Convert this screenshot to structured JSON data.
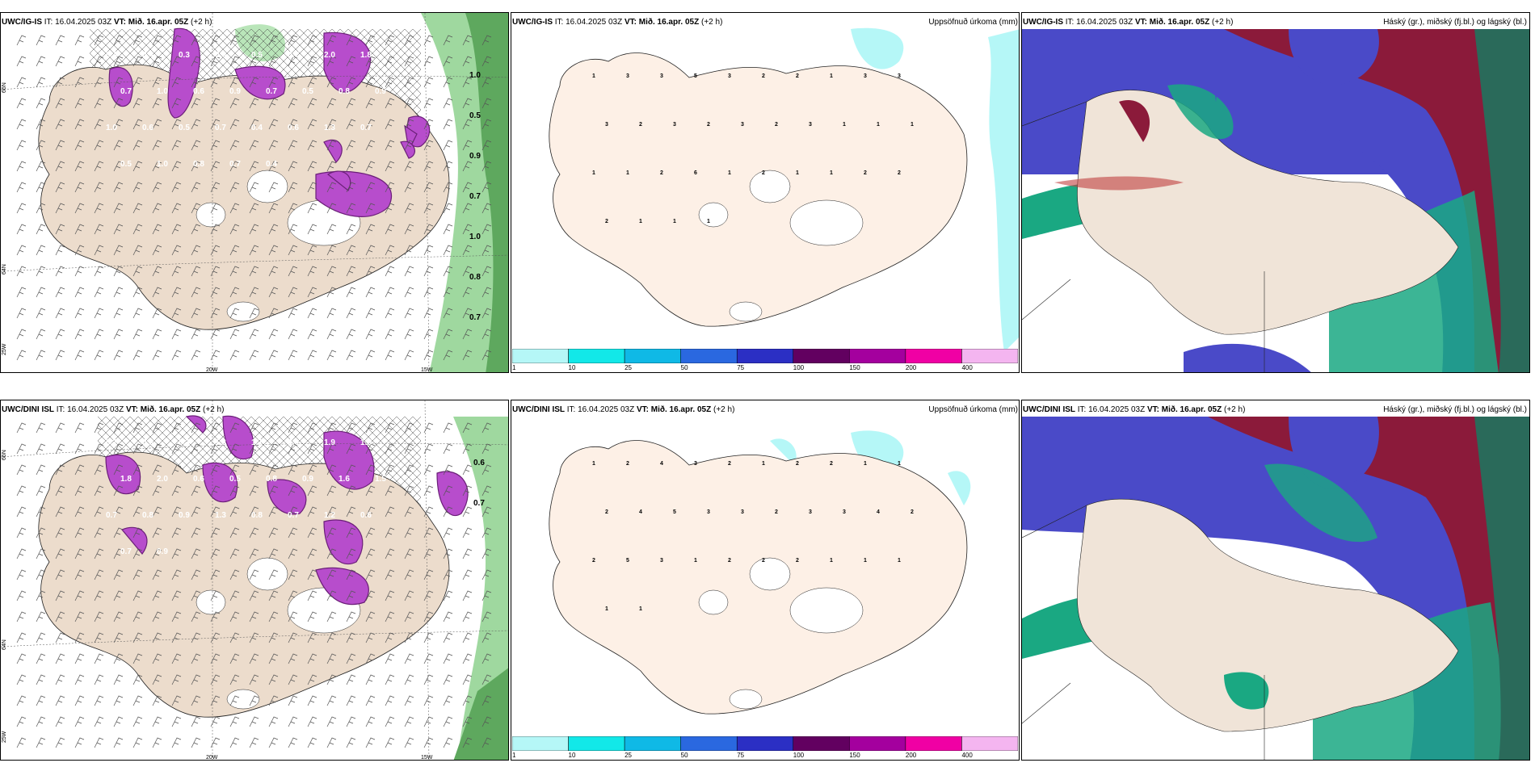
{
  "rows": [
    {
      "model": "UWC/IG-IS",
      "it_label": "IT:",
      "it_value": "16.04.2025 03Z",
      "vt_label": "VT:",
      "vt_value": "Mið. 16.apr. 05Z",
      "lead": "(+2 h)",
      "panel1_values": [
        "0.4",
        "0.4",
        "0.3",
        "0.6",
        "0.5",
        "0.7",
        "2.0",
        "1.8",
        "0.7",
        "1.0",
        "0.6",
        "0.9",
        "0.7",
        "0.5",
        "0.8",
        "0.9",
        "1.0",
        "0.6",
        "0.5",
        "0.7",
        "0.4",
        "0.6",
        "1.3",
        "0.7",
        "0.5",
        "1.0",
        "0.8",
        "0.7",
        "0.4"
      ],
      "panel1_edge_values": [
        "1.0",
        "0.5",
        "0.9",
        "0.7",
        "1.0",
        "0.8",
        "0.7"
      ],
      "panel2_values": [
        "1",
        "3",
        "3",
        "5",
        "3",
        "2",
        "2",
        "1",
        "3",
        "3",
        "3",
        "2",
        "3",
        "2",
        "3",
        "2",
        "3",
        "1",
        "1",
        "1",
        "1",
        "1",
        "2",
        "6",
        "1",
        "2",
        "1",
        "1",
        "2",
        "2",
        "2",
        "1",
        "1",
        "1"
      ],
      "panel3_title": "Háský (gr.), miðský (fj.bl.) og lágský (bl.)"
    },
    {
      "model": "UWC/DINI ISL",
      "it_label": "IT:",
      "it_value": "16.04.2025 03Z",
      "vt_label": "VT:",
      "vt_value": "Mið. 16.apr. 05Z",
      "lead": "(+2 h)",
      "panel1_values": [
        "0.2",
        "0.3",
        "0.3",
        "1.3",
        "1.7",
        "2.0",
        "1.9",
        "1.5",
        "1.8",
        "2.0",
        "0.6",
        "0.5",
        "0.8",
        "0.9",
        "1.6",
        "1.5",
        "0.7",
        "0.8",
        "0.9",
        "1.3",
        "0.8",
        "0.7",
        "1.2",
        "0.6",
        "0.7",
        "0.9"
      ],
      "panel1_edge_values": [
        "0.6",
        "0.7"
      ],
      "panel2_values": [
        "1",
        "2",
        "4",
        "3",
        "2",
        "1",
        "2",
        "2",
        "1",
        "1",
        "2",
        "4",
        "5",
        "3",
        "3",
        "2",
        "3",
        "3",
        "4",
        "2",
        "2",
        "5",
        "3",
        "1",
        "2",
        "2",
        "2",
        "1",
        "1",
        "1",
        "1",
        "1"
      ],
      "panel3_title": "Háský (gr.), miðský (fj.bl.) og lágský (bl.)"
    }
  ],
  "precip_title": "Uppsöfnuð úrkoma (mm)",
  "colorbar": {
    "labels": [
      "1",
      "10",
      "25",
      "50",
      "75",
      "100",
      "150",
      "200",
      "400"
    ],
    "colors": [
      "#b5f7f7",
      "#12e8e8",
      "#0fb9e6",
      "#2a68e0",
      "#2b2fc4",
      "#620060",
      "#a4009e",
      "#f000a4",
      "#f4b5f0"
    ]
  },
  "axis": {
    "lat66": "66N",
    "lat64": "64N",
    "lat63": "63N",
    "lon25": "25W",
    "lon20": "20W",
    "lon15": "15W"
  },
  "colors": {
    "land": "#ecdccc",
    "sea_white": "#ffffff",
    "snow_purple": "#b74dcc",
    "rain_green": "#8fd08f",
    "high_cloud": "#1aa882",
    "mid_cloud": "#4a4ac8",
    "low_cloud": "#8b1a3a"
  }
}
